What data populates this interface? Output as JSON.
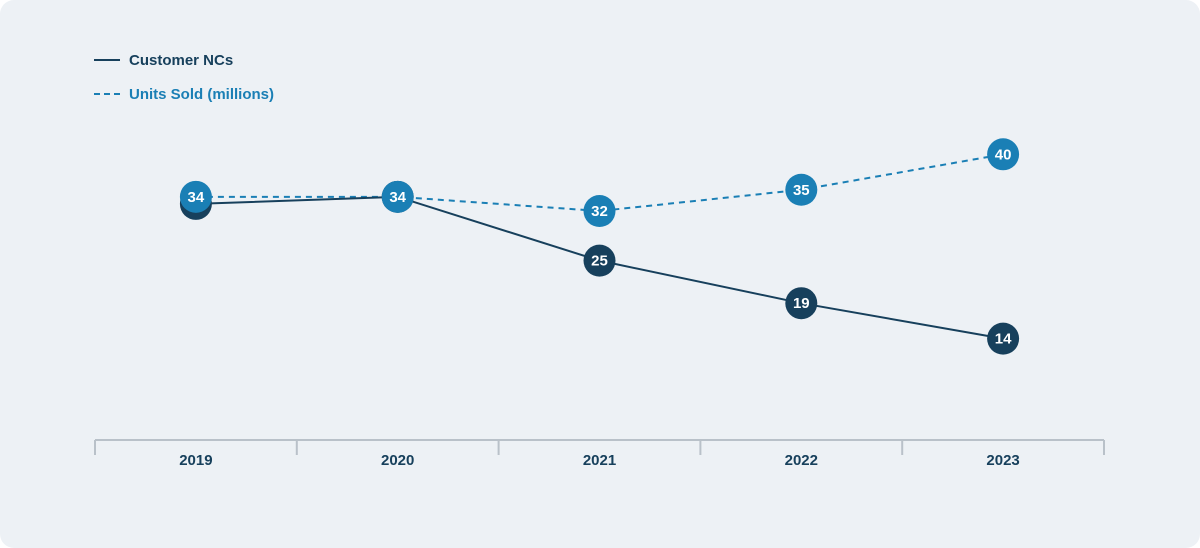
{
  "chart_data": {
    "type": "line",
    "title": "",
    "xlabel": "",
    "ylabel": "",
    "categories": [
      "2019",
      "2020",
      "2021",
      "2022",
      "2023"
    ],
    "series": [
      {
        "name": "Customer NCs",
        "values": [
          33,
          34,
          25,
          19,
          14
        ],
        "color": "#17405c",
        "line_style": "solid"
      },
      {
        "name": "Units Sold (millions)",
        "values": [
          34,
          34,
          32,
          35,
          40
        ],
        "color": "#1a7fb5",
        "line_style": "dashed"
      }
    ],
    "legend_position": "top-left",
    "grid": false,
    "data_labels": true,
    "colors": {
      "background": "#edf1f5",
      "axis": "#b9c1c9",
      "tick_text": "#17405c"
    }
  }
}
